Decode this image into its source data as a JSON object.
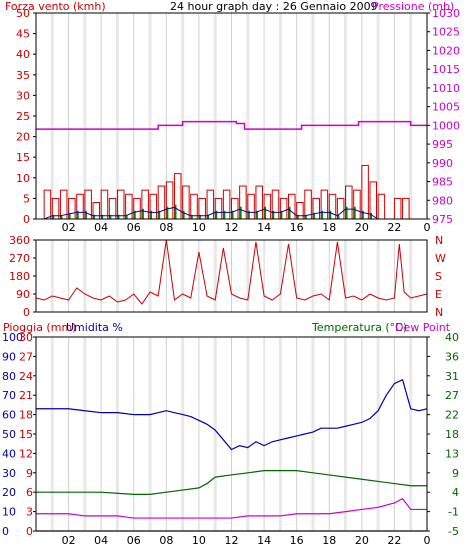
{
  "colors": {
    "wind": "#cc0000",
    "wind_bar": "#008800",
    "pressure": "#cc00cc",
    "humidity": "#0000aa",
    "temperature": "#006600",
    "dewpoint": "#cc00cc",
    "rain": "#cc0000",
    "frame": "#000000",
    "grid": "#d0d0d0",
    "band": "#e8e8e8"
  },
  "header": {
    "wind_label": "Forza vento (kmh)",
    "title": "24 hour graph day : 26 Gennaio 2009",
    "pressure_label": "Pressione (mb)"
  },
  "labels": {
    "rain": "Pioggia (mm)",
    "humidity": "Umidita %",
    "temperature": "Temperatura (°C)",
    "dewpoint": "Dew Point"
  },
  "chart_data": [
    {
      "id": "wind-pressure",
      "type": "line",
      "x_ticks": [
        "02",
        "04",
        "06",
        "08",
        "10",
        "12",
        "14",
        "16",
        "18",
        "20",
        "22",
        "0"
      ],
      "ylim_left": [
        0,
        50
      ],
      "yticks_left": [
        "0",
        "5",
        "10",
        "15",
        "20",
        "25",
        "30",
        "35",
        "40",
        "45",
        "50"
      ],
      "ylim_right": [
        975,
        1030
      ],
      "yticks_right": [
        "975",
        "980",
        "985",
        "990",
        "995",
        "1000",
        "1005",
        "1010",
        "1015",
        "1020",
        "1025",
        "1030"
      ],
      "grid": true,
      "series": [
        {
          "name": "Pressione (mb)",
          "axis": "right",
          "x": [
            0,
            7.5,
            7.5,
            9,
            9,
            12.3,
            12.3,
            12.8,
            12.8,
            16.3,
            16.3,
            19.8,
            19.8,
            23,
            23,
            24
          ],
          "y": [
            999,
            999,
            1000,
            1000,
            1001,
            1001,
            1000.5,
            1000.5,
            999,
            999,
            1000,
            1000,
            1001,
            1001,
            1000,
            1000
          ]
        },
        {
          "name": "Forza vento (kmh)",
          "axis": "left",
          "x": [
            0,
            0.5,
            1,
            1.5,
            2,
            2.5,
            3,
            3.5,
            4,
            4.5,
            5,
            5.5,
            6,
            6.5,
            7,
            7.5,
            8,
            8.5,
            9,
            9.5,
            10,
            10.5,
            11,
            11.5,
            12,
            12.5,
            13,
            13.5,
            14,
            14.5,
            15,
            15.5,
            16,
            16.5,
            17,
            17.5,
            18,
            18.5,
            19,
            19.5,
            20,
            20.5,
            21
          ],
          "y": [
            0,
            0,
            1,
            1,
            1.5,
            2,
            2,
            1,
            1,
            1,
            1,
            1,
            2,
            2.5,
            2,
            2,
            3,
            3.5,
            2,
            1,
            1,
            1,
            2,
            2,
            2,
            3,
            2,
            2,
            3,
            2,
            2,
            3,
            1,
            1,
            1.5,
            2,
            2,
            1,
            3,
            3,
            2,
            1.5,
            0
          ]
        },
        {
          "name": "Raffiche",
          "axis": "left",
          "x": [
            0.5,
            1,
            1.5,
            2,
            2.5,
            3,
            3.5,
            4,
            4.5,
            5,
            5.5,
            6,
            6.5,
            7,
            7.5,
            8,
            8.5,
            9,
            9.5,
            10,
            10.5,
            11,
            11.5,
            12,
            12.5,
            13,
            13.5,
            14,
            14.5,
            15,
            15.5,
            16,
            16.5,
            17,
            17.5,
            18,
            18.5,
            19,
            19.5,
            20,
            20.5,
            21,
            22,
            22.5
          ],
          "y": [
            7,
            5,
            7,
            5,
            6,
            7,
            4,
            7,
            5,
            7,
            6,
            5,
            7,
            6,
            8,
            9,
            11,
            8,
            6,
            5,
            7,
            5,
            7,
            5,
            8,
            6,
            8,
            6,
            7,
            5,
            6,
            4,
            7,
            5,
            7,
            6,
            5,
            8,
            7,
            13,
            9,
            6,
            5,
            5
          ]
        }
      ]
    },
    {
      "id": "wind-direction",
      "type": "line",
      "ylim_left": [
        0,
        360
      ],
      "yticks_left": [
        "0",
        "90",
        "180",
        "270",
        "360"
      ],
      "ytick_labels_right": [
        "N",
        "W",
        "S",
        "E",
        "N"
      ],
      "grid": true,
      "series": [
        {
          "name": "Direzione vento",
          "x": [
            0,
            0.5,
            1,
            1.5,
            2,
            2.5,
            3,
            3.5,
            4,
            4.5,
            5,
            5.5,
            6,
            6.5,
            7,
            7.5,
            8,
            8.5,
            9,
            9.5,
            10,
            10.5,
            11,
            11.5,
            12,
            12.5,
            13,
            13.5,
            14,
            14.5,
            15,
            15.5,
            16,
            16.5,
            17,
            17.5,
            18,
            18.5,
            19,
            19.5,
            20,
            20.5,
            21,
            21.5,
            22,
            22.3,
            22.6,
            23,
            23.5,
            24
          ],
          "y": [
            70,
            60,
            80,
            70,
            60,
            120,
            90,
            70,
            60,
            80,
            50,
            60,
            90,
            40,
            100,
            80,
            360,
            60,
            90,
            70,
            300,
            80,
            60,
            320,
            90,
            70,
            60,
            350,
            80,
            60,
            90,
            340,
            70,
            60,
            80,
            90,
            60,
            350,
            70,
            80,
            60,
            90,
            70,
            60,
            70,
            340,
            100,
            70,
            80,
            90
          ]
        }
      ]
    },
    {
      "id": "humidity-temperature",
      "type": "line",
      "x_ticks": [
        "02",
        "04",
        "06",
        "08",
        "10",
        "12",
        "14",
        "16",
        "18",
        "20",
        "22",
        "0"
      ],
      "ylim_rain": [
        0,
        30
      ],
      "yticks_rain": [
        "0",
        "3",
        "6",
        "9",
        "12",
        "15",
        "18",
        "21",
        "24",
        "27",
        "30"
      ],
      "ylim_humidity": [
        0,
        100
      ],
      "yticks_humidity": [
        "0",
        "10",
        "20",
        "30",
        "40",
        "50",
        "60",
        "70",
        "80",
        "90",
        "100"
      ],
      "ylim_temp": [
        -5,
        40
      ],
      "yticks_temp": [
        "-5",
        "-1",
        "4",
        "9",
        "13",
        "18",
        "22",
        "27",
        "31",
        "36",
        "40"
      ],
      "grid": true,
      "series": [
        {
          "name": "Umidita %",
          "axis": "humidity",
          "x": [
            0,
            1,
            2,
            3,
            4,
            5,
            6,
            7,
            7.5,
            8,
            8.5,
            9,
            9.5,
            10,
            10.5,
            11,
            11.5,
            12,
            12.5,
            13,
            13.5,
            14,
            14.5,
            15,
            15.5,
            16,
            16.5,
            17,
            17.5,
            18,
            18.5,
            19,
            19.5,
            20,
            20.5,
            21,
            21.5,
            22,
            22.5,
            23,
            23.5,
            24
          ],
          "y": [
            63,
            63,
            63,
            62,
            61,
            61,
            60,
            60,
            61,
            62,
            61,
            60,
            59,
            57,
            55,
            52,
            47,
            42,
            44,
            43,
            46,
            44,
            46,
            47,
            48,
            49,
            50,
            51,
            53,
            53,
            53,
            54,
            55,
            56,
            58,
            62,
            70,
            76,
            78,
            63,
            62,
            63
          ]
        },
        {
          "name": "Temperatura (°C)",
          "axis": "temp",
          "x": [
            0,
            2,
            4,
            6,
            7,
            8,
            9,
            10,
            10.5,
            11,
            12,
            13,
            14,
            15,
            16,
            17,
            18,
            19,
            20,
            21,
            22,
            23,
            24
          ],
          "y": [
            4,
            4,
            4,
            3.5,
            3.5,
            4,
            4.5,
            5,
            6,
            7.5,
            8,
            8.5,
            9,
            9,
            9,
            8.5,
            8,
            7.5,
            7,
            6.5,
            6,
            5.5,
            5.5
          ]
        },
        {
          "name": "Dew Point",
          "axis": "temp",
          "x": [
            0,
            1,
            2,
            3,
            4,
            5,
            6,
            7,
            8,
            9,
            10,
            11,
            12,
            13,
            14,
            15,
            16,
            17,
            18,
            19,
            20,
            21,
            22,
            22.5,
            23,
            23.5,
            24
          ],
          "y": [
            -1,
            -1,
            -1,
            -1.5,
            -1.5,
            -1.5,
            -2,
            -2,
            -2,
            -2,
            -2,
            -2,
            -2,
            -1.5,
            -1.5,
            -1.5,
            -1,
            -1,
            -1,
            -0.5,
            0,
            0.5,
            1.5,
            2.5,
            0,
            0,
            0
          ]
        },
        {
          "name": "Pioggia (mm)",
          "axis": "rain",
          "x": [
            0,
            24
          ],
          "y": [
            0,
            0
          ]
        }
      ]
    }
  ]
}
